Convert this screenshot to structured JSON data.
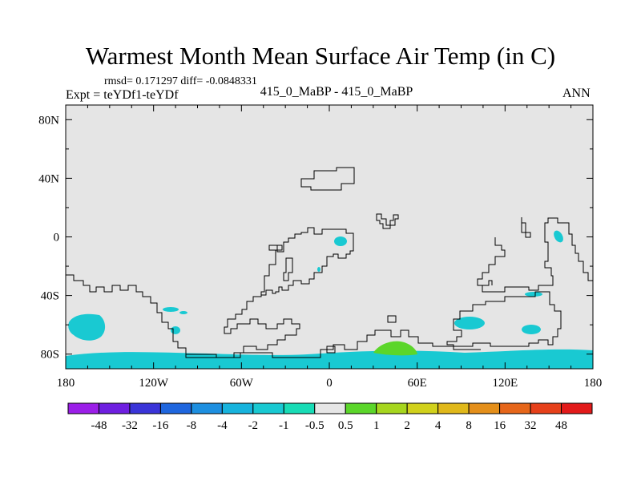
{
  "header": {
    "title": "Warmest Month Mean Surface Air Temp (in C)",
    "stats": "rmsd= 0.171297 diff= -0.0848331",
    "expt": "Expt = teYDf1-teYDf",
    "center_subtitle": "415_0_MaBP - 415_0_MaBP",
    "season": "ANN"
  },
  "chart_data": {
    "type": "contour-map",
    "title": "Warmest Month Mean Surface Air Temp (in C)",
    "x_axis": {
      "range": [
        -180,
        180
      ],
      "ticks": [
        -180,
        -120,
        -60,
        0,
        60,
        120,
        180
      ],
      "tick_labels": [
        "180",
        "120W",
        "60W",
        "0",
        "60E",
        "120E",
        "180"
      ]
    },
    "y_axis": {
      "range": [
        -90,
        90
      ],
      "ticks": [
        80,
        40,
        0,
        -40,
        -80
      ],
      "tick_labels": [
        "80N",
        "40N",
        "0",
        "40S",
        "80S"
      ]
    },
    "background_color": "#e5e5e5",
    "colorbar": {
      "boundaries": [
        "-48",
        "-32",
        "-16",
        "-8",
        "-4",
        "-2",
        "-1",
        "-0.5",
        "0.5",
        "1",
        "2",
        "4",
        "8",
        "16",
        "32",
        "48"
      ],
      "colors": [
        "#9b1ee8",
        "#6e1fe0",
        "#3a34d8",
        "#1f66de",
        "#1d8fe0",
        "#17b3dd",
        "#19c9d2",
        "#18dcb6",
        "#e6e6e6",
        "#5bd62a",
        "#a6d61e",
        "#d1d11c",
        "#e0b81a",
        "#e48f1a",
        "#e6661a",
        "#e6401a",
        "#e21a1a"
      ]
    },
    "regions": [
      {
        "name": "southern-band",
        "range": "-1 to -0.5",
        "lon_range": [
          -180,
          180
        ],
        "lat_range": [
          -90,
          -80
        ]
      },
      {
        "name": "pacific-south-patch",
        "range": "-1 to -0.5",
        "center": [
          -165,
          -60
        ]
      },
      {
        "name": "atlantic-south-small",
        "range": "-1 to -0.5",
        "center": [
          -110,
          -50
        ]
      },
      {
        "name": "africa-patch",
        "range": "-1 to -0.5",
        "center": [
          8,
          -3
        ]
      },
      {
        "name": "indian-patch",
        "range": "-1 to -0.5",
        "center": [
          100,
          -58
        ]
      },
      {
        "name": "australia-patch",
        "range": "-1 to -0.5",
        "center": [
          135,
          -63
        ]
      },
      {
        "name": "pacific-west-patch",
        "range": "-1 to -0.5",
        "center": [
          157,
          0
        ]
      },
      {
        "name": "warm-antarctic-patch",
        "range": "0.5 to 1",
        "center": [
          45,
          -76
        ]
      }
    ]
  }
}
